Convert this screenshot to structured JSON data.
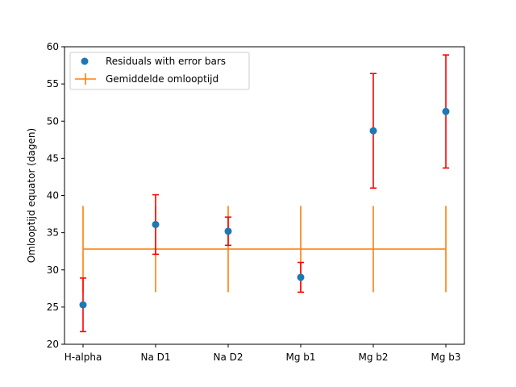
{
  "chart_data": {
    "type": "scatter",
    "categories": [
      "H-alpha",
      "Na D1",
      "Na D2",
      "Mg b1",
      "Mg b2",
      "Mg b3"
    ],
    "ylabel": "Omlooptijd equator (dagen)",
    "xlabel": "",
    "title": "",
    "ylim": [
      20,
      60
    ],
    "yticks": [
      20,
      25,
      30,
      35,
      40,
      45,
      50,
      55,
      60
    ],
    "legend_position": "upper-left",
    "grid": false,
    "series": [
      {
        "name": "Residuals with error bars",
        "kind": "points-with-errorbars",
        "marker_color": "#1f77b4",
        "errorbar_color": "#ff0000",
        "values": [
          25.3,
          36.1,
          35.2,
          29.0,
          48.7,
          51.3
        ],
        "errors": [
          3.6,
          4.0,
          1.9,
          2.0,
          7.7,
          7.6
        ]
      },
      {
        "name": "Gemiddelde omlooptijd",
        "kind": "mean-line",
        "color": "#ff7f0e",
        "values": [
          32.8,
          32.8,
          32.8,
          32.8,
          32.8,
          32.8
        ],
        "errors": [
          5.8,
          5.8,
          5.8,
          5.8,
          5.8,
          5.8
        ]
      }
    ]
  }
}
